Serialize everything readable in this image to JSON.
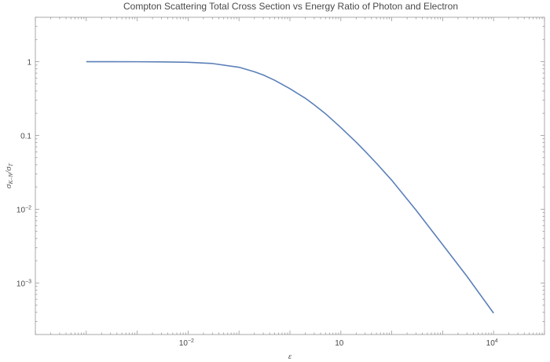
{
  "chart_data": {
    "type": "line",
    "title": "Compton Scattering Total Cross Section vs Energy Ratio of Photon and Electron",
    "xlabel": "ε",
    "ylabel": {
      "sigma": "σ",
      "sub1": "K–N",
      "slash": "/",
      "sub2": "T"
    },
    "x_scale": "log",
    "y_scale": "log",
    "xlim": [
      1e-05,
      100000
    ],
    "ylim": [
      0.0002,
      4
    ],
    "grid": false,
    "x_ticks": [
      {
        "value": 0.01,
        "base": "10",
        "exp": "−2"
      },
      {
        "value": 10,
        "base": "10",
        "exp": ""
      },
      {
        "value": 10000,
        "base": "10",
        "exp": "4"
      }
    ],
    "y_ticks": [
      {
        "value": 1,
        "base": "1",
        "exp": ""
      },
      {
        "value": 0.1,
        "base": "0.1",
        "exp": ""
      },
      {
        "value": 0.01,
        "base": "10",
        "exp": "−2"
      },
      {
        "value": 0.001,
        "base": "10",
        "exp": "−3"
      }
    ],
    "series": [
      {
        "color": "#5b80b9",
        "x": [
          0.0001,
          0.0003,
          0.001,
          0.003,
          0.01,
          0.03,
          0.1,
          0.2,
          0.3,
          0.5,
          1,
          2,
          3,
          5,
          10,
          20,
          30,
          50,
          100,
          300,
          1000,
          3000,
          10000
        ],
        "y": [
          0.9998,
          0.9994,
          0.998,
          0.994,
          0.981,
          0.945,
          0.84,
          0.73,
          0.66,
          0.56,
          0.43,
          0.32,
          0.26,
          0.197,
          0.128,
          0.081,
          0.061,
          0.042,
          0.0247,
          0.0097,
          0.0033,
          0.00123,
          0.00039
        ]
      }
    ]
  }
}
